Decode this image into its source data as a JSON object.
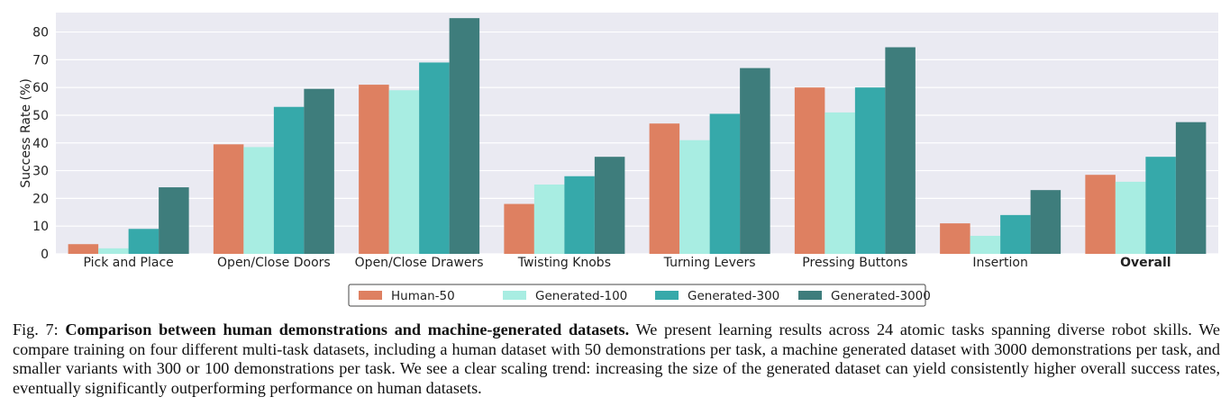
{
  "chart_data": {
    "type": "bar",
    "ylabel": "Success Rate (%)",
    "xlabel": "",
    "ylim": [
      0,
      87
    ],
    "yticks": [
      0,
      10,
      20,
      30,
      40,
      50,
      60,
      70,
      80
    ],
    "grid": true,
    "legend_position": "bottom-center",
    "categories": [
      "Pick and Place",
      "Open/Close Doors",
      "Open/Close Drawers",
      "Twisting Knobs",
      "Turning Levers",
      "Pressing Buttons",
      "Insertion",
      "Overall"
    ],
    "bold_categories": [
      "Overall"
    ],
    "series": [
      {
        "name": "Human-50",
        "color": "#de8061",
        "values": [
          3.5,
          39.5,
          61,
          18,
          47,
          60,
          11,
          28.5
        ]
      },
      {
        "name": "Generated-100",
        "color": "#a8ede2",
        "values": [
          2,
          38.5,
          59,
          25,
          41,
          51,
          6.5,
          26
        ]
      },
      {
        "name": "Generated-300",
        "color": "#36a9aa",
        "values": [
          9,
          53,
          69,
          28,
          50.5,
          60,
          14,
          35
        ]
      },
      {
        "name": "Generated-3000",
        "color": "#3e7d7c",
        "values": [
          24,
          59.5,
          85,
          35,
          67,
          74.5,
          23,
          47.5
        ]
      }
    ]
  },
  "caption": {
    "label": "Fig. 7: ",
    "title": "Comparison between human demonstrations and machine-generated datasets.",
    "body": " We present learning results across 24 atomic tasks spanning diverse robot skills. We compare training on four different multi-task datasets, including a human dataset with 50 demonstrations per task, a machine generated dataset with 3000 demonstrations per task, and smaller variants with 300 or 100 demonstrations per task. We see a clear scaling trend: increasing the size of the generated dataset can yield consistently higher overall success rates, eventually significantly outperforming performance on human datasets."
  }
}
